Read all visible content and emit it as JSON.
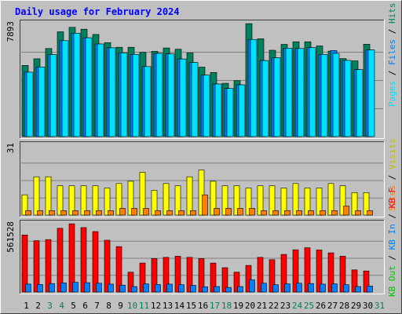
{
  "chart_data": {
    "type": "bar",
    "title": "Daily usage for February 2024",
    "days": [
      "1",
      "2",
      "3",
      "4",
      "5",
      "6",
      "7",
      "8",
      "9",
      "10",
      "11",
      "12",
      "13",
      "14",
      "15",
      "16",
      "17",
      "18",
      "19",
      "20",
      "21",
      "22",
      "23",
      "24",
      "25",
      "26",
      "27",
      "28",
      "29",
      "30",
      "31"
    ],
    "weekend_days": [
      3,
      4,
      10,
      11,
      17,
      18,
      24,
      25,
      31
    ],
    "colors": {
      "title": "#0000ff",
      "background": "#c0c0c0",
      "panel_bg": "#c0c0c0",
      "gridline": "#808080",
      "hits": "#00805c",
      "files": "#00c0ff",
      "pages": "#00e0ff",
      "visits": "#ffff00",
      "sites": "#ff8000",
      "kb_f": "#ff0000",
      "kb_in": "#0080ff",
      "kb_out": "#00c000",
      "weekday_label": "#000000",
      "weekend_label": "#00805c"
    },
    "panels": [
      {
        "id": "top",
        "max_label": "7893",
        "max": 7893,
        "legend": [
          {
            "text": "Hits",
            "color": "#00805c"
          },
          {
            "text": "/",
            "color": "#000000"
          },
          {
            "text": "Files",
            "color": "#0080ff"
          },
          {
            "text": "/",
            "color": "#000000"
          },
          {
            "text": "Pages",
            "color": "#00e0ff"
          }
        ],
        "series": [
          {
            "key": "hits",
            "color": "#00805c",
            "values": [
              4970,
              5430,
              6150,
              7320,
              7630,
              7500,
              7130,
              6560,
              6240,
              6240,
              5880,
              5950,
              6190,
              6100,
              5840,
              4850,
              4480,
              3720,
              3900,
              7890,
              6830,
              6030,
              6440,
              6620,
              6620,
              6330,
              5970,
              5450,
              5290,
              6450,
              null
            ]
          },
          {
            "key": "files",
            "color": "#0080ff",
            "values": [
              4500,
              4860,
              5730,
              6700,
              7220,
              6900,
              6470,
              6200,
              5850,
              5740,
              4890,
              5810,
              5770,
              5420,
              5180,
              4290,
              3670,
              3360,
              3620,
              6780,
              5310,
              5510,
              6180,
              6150,
              6210,
              5740,
              6010,
              5320,
              4680,
              6050,
              null
            ]
          },
          {
            "key": "pages",
            "color": "#00e0ff",
            "values": [
              4500,
              4860,
              5730,
              6700,
              7220,
              6900,
              6470,
              6200,
              5850,
              5740,
              4890,
              5810,
              5770,
              5420,
              5180,
              4290,
              3670,
              3360,
              3620,
              6780,
              5310,
              5510,
              6180,
              6150,
              6210,
              5740,
              5810,
              5320,
              4680,
              6050,
              null
            ]
          }
        ]
      },
      {
        "id": "middle",
        "max_label": "31",
        "max": 31,
        "legend": [
          {
            "text": "Visits",
            "color": "#c0c000"
          },
          {
            "text": "/",
            "color": "#000000"
          },
          {
            "text": "Sites",
            "color": "#ff8000"
          }
        ],
        "series": [
          {
            "key": "visits",
            "color": "#ffff00",
            "values": [
              9,
              17,
              17,
              13,
              13,
              13,
              13,
              12,
              14,
              15,
              19,
              11,
              14,
              13,
              17,
              20,
              15,
              13,
              13,
              12,
              13,
              13,
              12,
              14,
              12,
              12,
              14,
              13,
              10,
              10,
              null
            ]
          },
          {
            "key": "sites",
            "color": "#ff8000",
            "values": [
              2,
              2,
              2,
              2,
              2,
              2,
              2,
              2,
              3,
              3,
              3,
              2,
              2,
              2,
              2,
              9,
              3,
              3,
              3,
              3,
              2,
              2,
              2,
              2,
              2,
              2,
              2,
              4,
              2,
              2,
              null
            ]
          }
        ]
      },
      {
        "id": "bottom",
        "max_label": "561528",
        "max": 561528,
        "legend": [
          {
            "text": "KB F",
            "color": "#ff0000"
          },
          {
            "text": "/",
            "color": "#000000"
          },
          {
            "text": "KB In",
            "color": "#0080ff"
          },
          {
            "text": "/",
            "color": "#000000"
          },
          {
            "text": "KB Out",
            "color": "#00c000"
          }
        ],
        "series": [
          {
            "key": "kb_f",
            "color": "#ff0000",
            "values": [
              469000,
              422000,
              431000,
              524000,
              561000,
              530000,
              497000,
              426000,
              374000,
              163000,
              238000,
              275000,
              285000,
              294000,
              285000,
              275000,
              238000,
              200000,
              163000,
              219000,
              285000,
              266000,
              309000,
              347000,
              364000,
              346000,
              322000,
              294000,
              182000,
              173000,
              null
            ]
          },
          {
            "key": "kb_in",
            "color": "#0080ff",
            "values": [
              65000,
              62000,
              70000,
              75000,
              80000,
              77000,
              72000,
              65000,
              57000,
              45000,
              67000,
              62000,
              65000,
              60000,
              55000,
              43000,
              45000,
              38000,
              45000,
              100000,
              72000,
              60000,
              67000,
              72000,
              70000,
              65000,
              67000,
              60000,
              45000,
              50000,
              null
            ]
          }
        ]
      }
    ]
  }
}
